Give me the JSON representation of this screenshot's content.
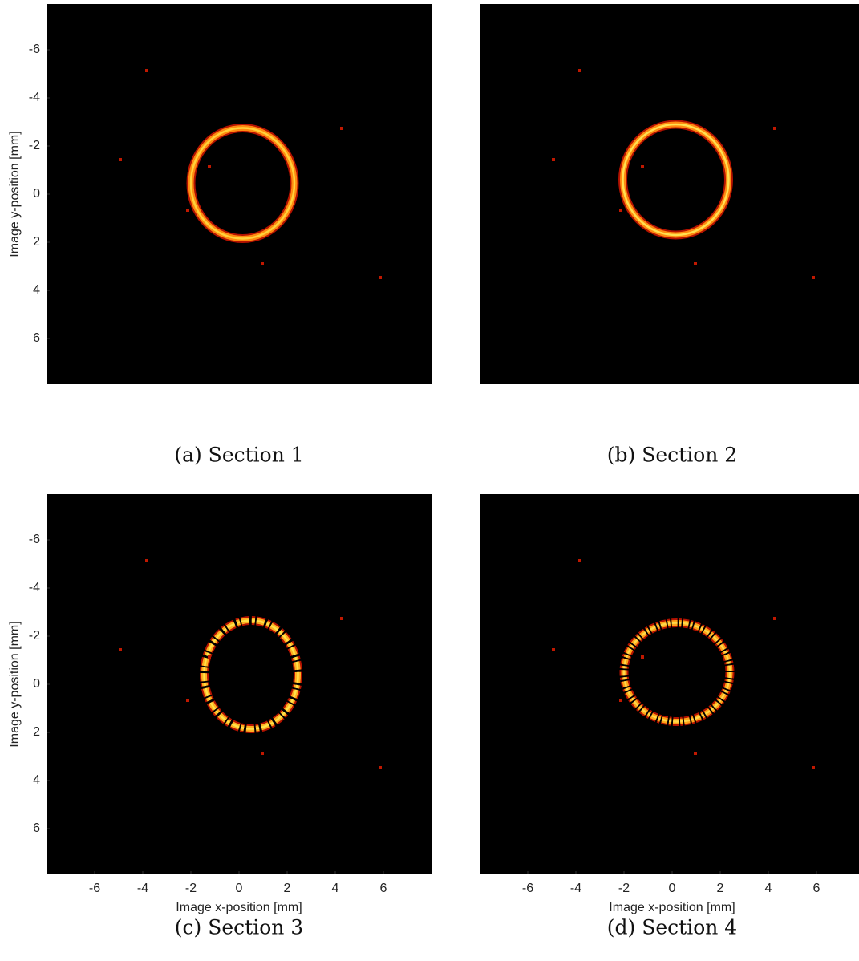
{
  "chart_data": [
    {
      "type": "image",
      "caption": "(a) Section 1",
      "ylabel": "Image y-position [mm]",
      "xlim": [
        -8,
        8
      ],
      "ylim": [
        -7.9,
        7.9
      ],
      "yticks": [
        -6,
        -4,
        -2,
        0,
        2,
        4,
        6
      ]
    },
    {
      "type": "image",
      "caption": "(b) Section 2",
      "xlim": [
        -8,
        8
      ],
      "ylim": [
        -7.9,
        7.9
      ]
    },
    {
      "type": "image",
      "caption": "(c) Section 3",
      "ylabel": "Image y-position [mm]",
      "xlabel": "Image x-position [mm]",
      "xlim": [
        -8,
        8
      ],
      "ylim": [
        -7.9,
        7.9
      ],
      "yticks": [
        -6,
        -4,
        -2,
        0,
        2,
        4,
        6
      ],
      "xticks": [
        -6,
        -4,
        -2,
        0,
        2,
        4,
        6
      ]
    },
    {
      "type": "image",
      "caption": "(d) Section 4",
      "xlabel": "Image x-position [mm]",
      "xlim": [
        -8,
        8
      ],
      "ylim": [
        -7.9,
        7.9
      ],
      "xticks": [
        -6,
        -4,
        -2,
        0,
        2,
        4,
        6
      ]
    }
  ]
}
